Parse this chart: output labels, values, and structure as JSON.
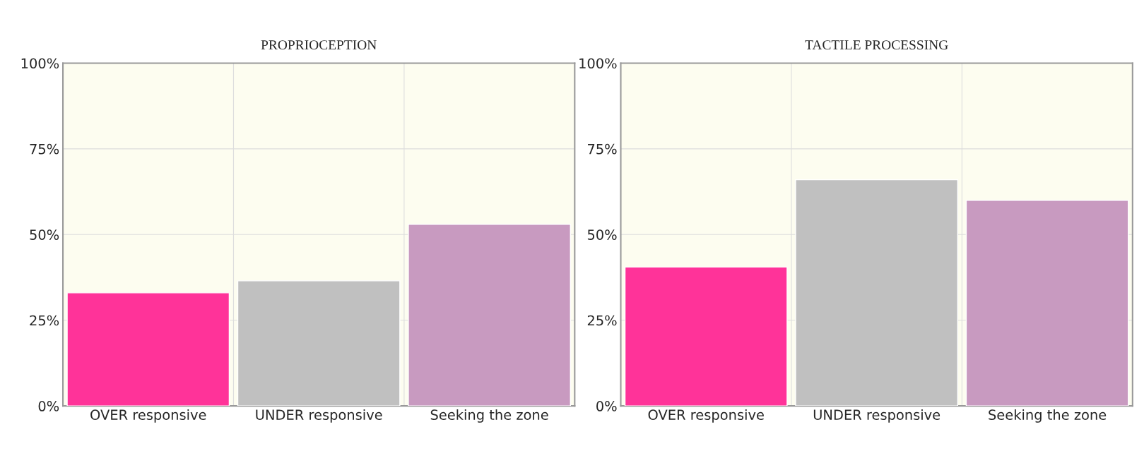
{
  "chart_data": [
    {
      "type": "bar",
      "title": "PROPRIOCEPTION",
      "categories": [
        "OVER responsive",
        "UNDER responsive",
        "Seeking the zone"
      ],
      "values": [
        33,
        36.5,
        53
      ],
      "colors": [
        "#ff3399",
        "#c0c0c0",
        "#c89ac0"
      ],
      "ylim": [
        0,
        100
      ],
      "yticks": [
        {
          "value": 0,
          "label": "0%"
        },
        {
          "value": 25,
          "label": "25%"
        },
        {
          "value": 50,
          "label": "50%"
        },
        {
          "value": 75,
          "label": "75%"
        },
        {
          "value": 100,
          "label": "100%"
        }
      ],
      "grid": true
    },
    {
      "type": "bar",
      "title": "TACTILE PROCESSING",
      "categories": [
        "OVER responsive",
        "UNDER responsive",
        "Seeking the zone"
      ],
      "values": [
        40.5,
        66,
        60
      ],
      "colors": [
        "#ff3399",
        "#c0c0c0",
        "#c89ac0"
      ],
      "ylim": [
        0,
        100
      ],
      "yticks": [
        {
          "value": 0,
          "label": "0%"
        },
        {
          "value": 25,
          "label": "25%"
        },
        {
          "value": 50,
          "label": "50%"
        },
        {
          "value": 75,
          "label": "75%"
        },
        {
          "value": 100,
          "label": "100%"
        }
      ],
      "grid": true
    }
  ]
}
